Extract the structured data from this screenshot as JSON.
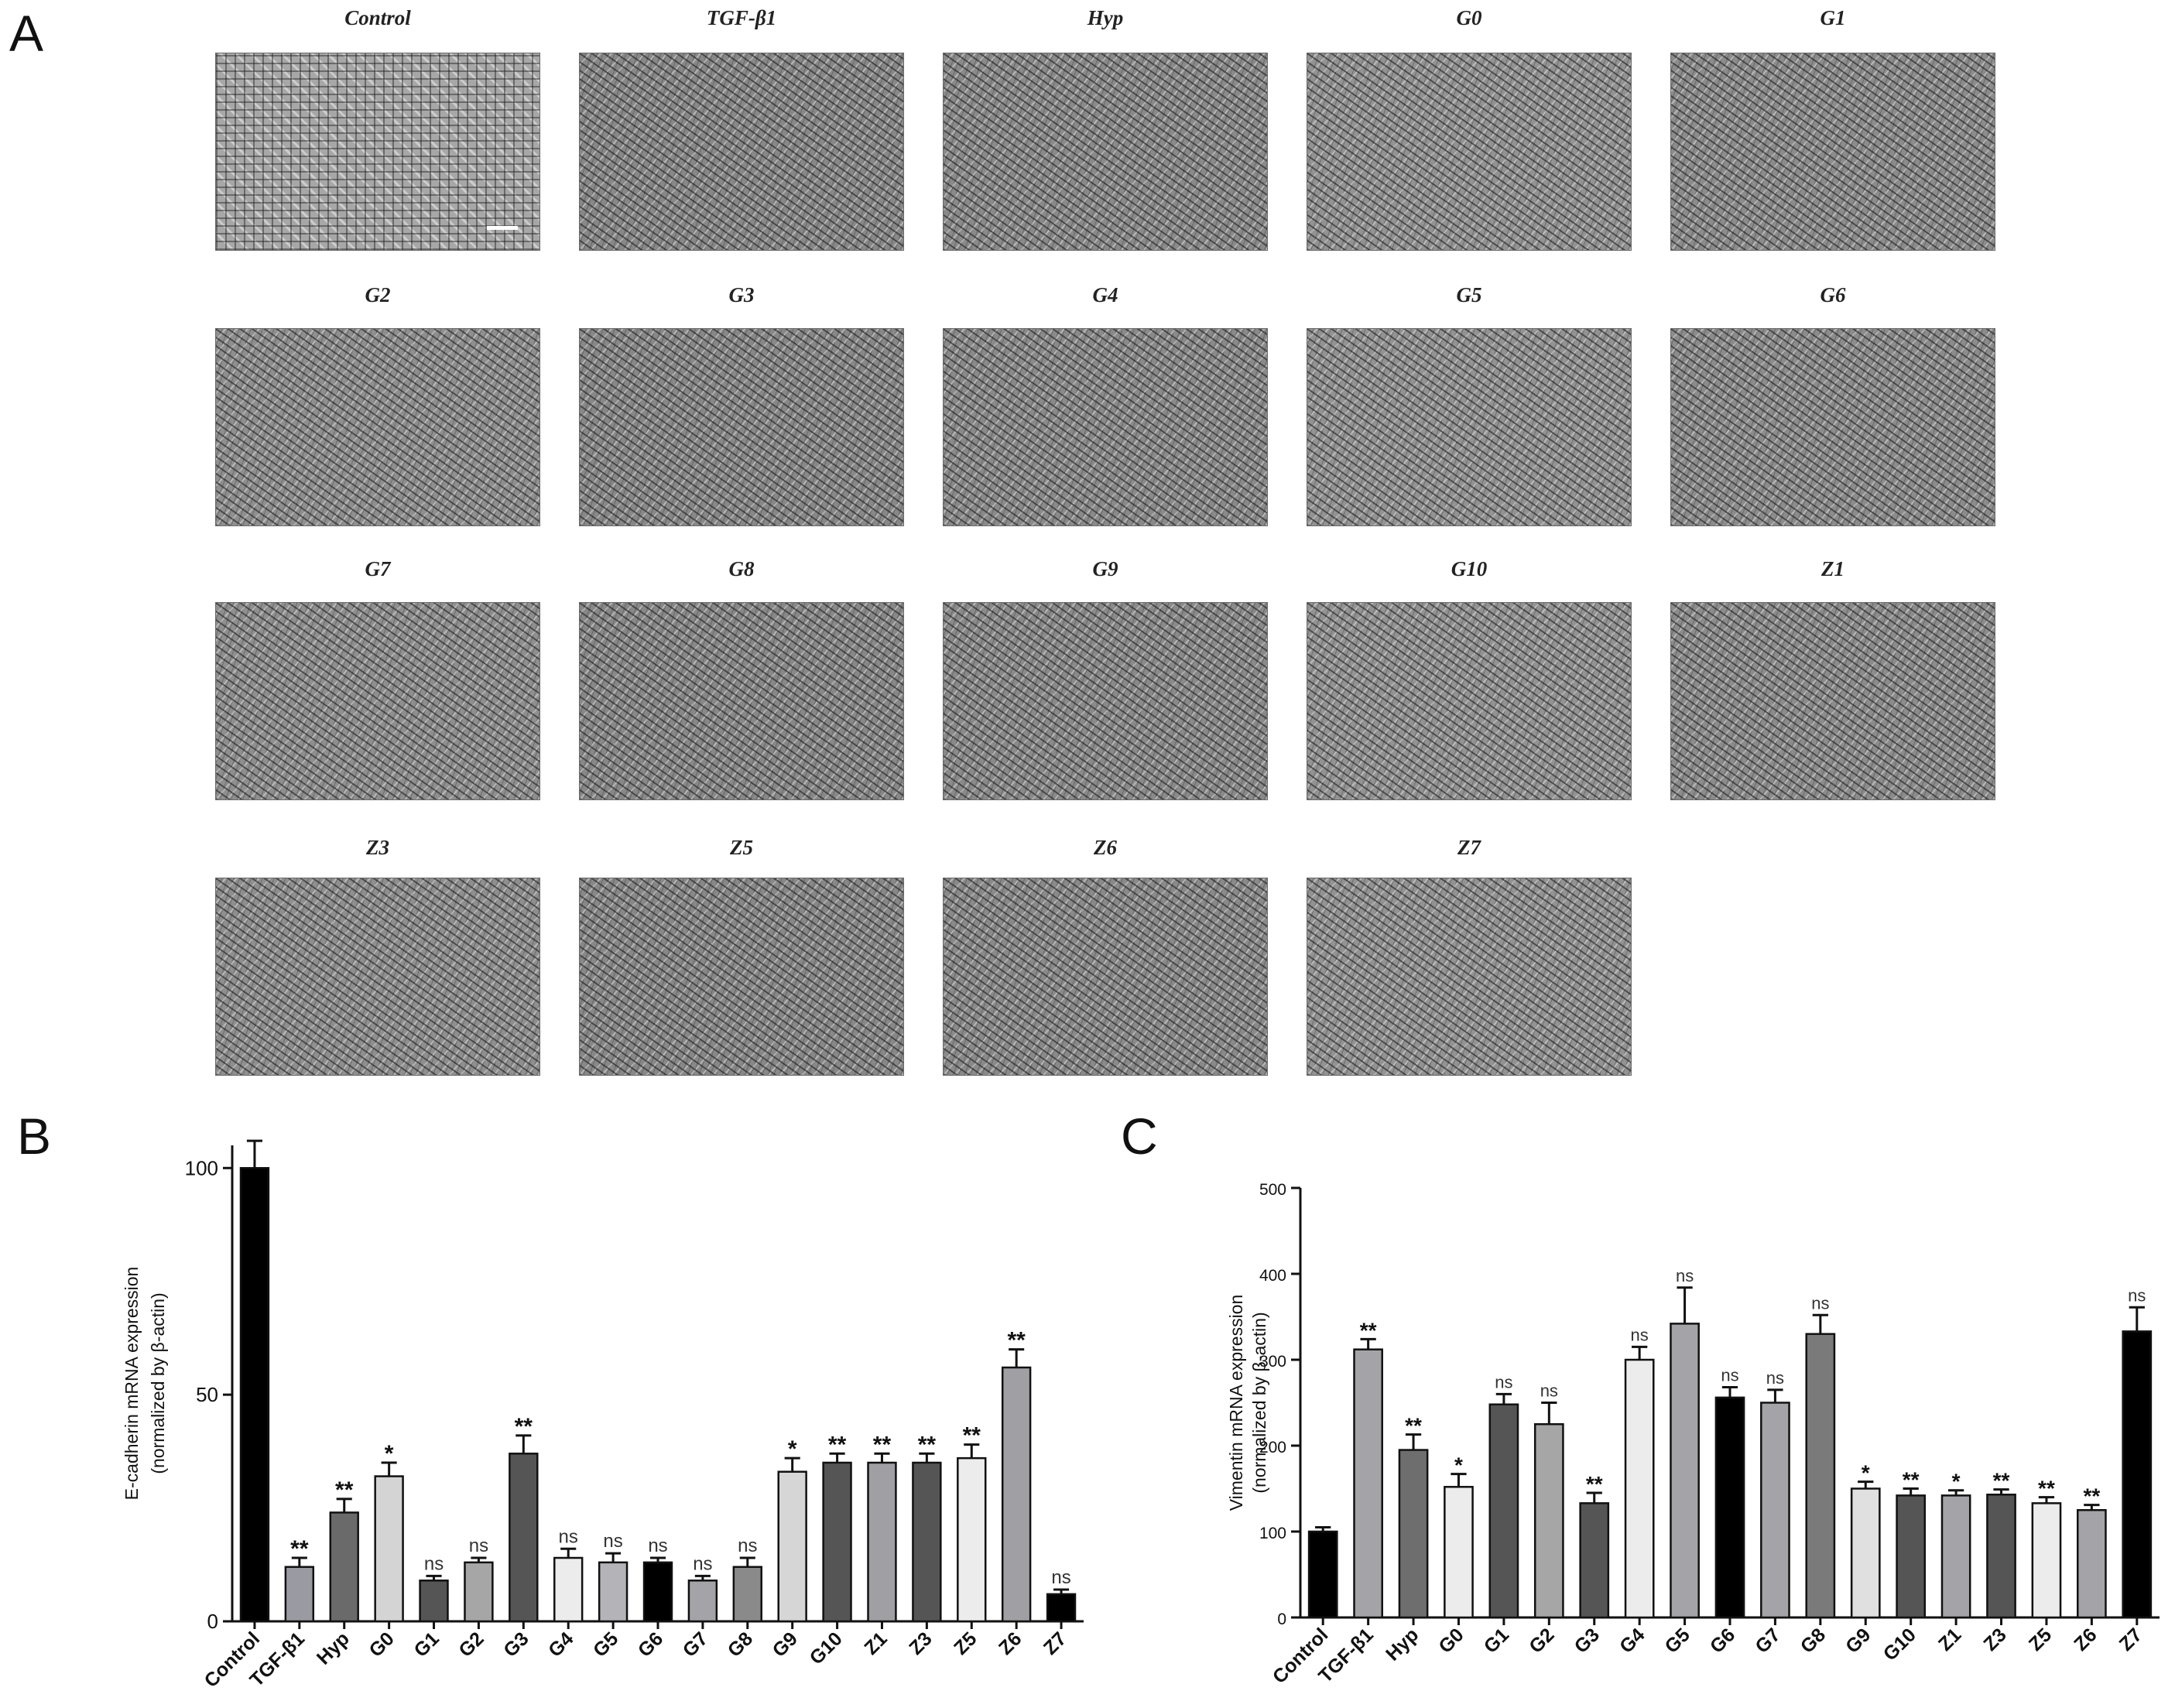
{
  "panel_letters": {
    "a": "A",
    "b": "B",
    "c": "C"
  },
  "micrographs": [
    {
      "label": "Control"
    },
    {
      "label": "TGF-β1"
    },
    {
      "label": "Hyp"
    },
    {
      "label": "G0"
    },
    {
      "label": "G1"
    },
    {
      "label": "G2"
    },
    {
      "label": "G3"
    },
    {
      "label": "G4"
    },
    {
      "label": "G5"
    },
    {
      "label": "G6"
    },
    {
      "label": "G7"
    },
    {
      "label": "G8"
    },
    {
      "label": "G9"
    },
    {
      "label": "G10"
    },
    {
      "label": "Z1"
    },
    {
      "label": "Z3"
    },
    {
      "label": "Z5"
    },
    {
      "label": "Z6"
    },
    {
      "label": "Z7"
    }
  ],
  "chart_data": [
    {
      "type": "bar",
      "panel": "B",
      "ylabel": "E-cadherin mRNA expression (normalized by β-actin)",
      "ylabel_lines": [
        "E-cadherin mRNA expression",
        "(normalized by β-actin)"
      ],
      "ylim": [
        0,
        105
      ],
      "yticks": [
        0,
        50,
        100
      ],
      "categories": [
        "Control",
        "TGF-β1",
        "Hyp",
        "G0",
        "G1",
        "G2",
        "G3",
        "G4",
        "G5",
        "G6",
        "G7",
        "G8",
        "G9",
        "G10",
        "Z1",
        "Z3",
        "Z5",
        "Z6",
        "Z7"
      ],
      "values": [
        100,
        12,
        24,
        32,
        9,
        13,
        37,
        14,
        13,
        13,
        9,
        12,
        33,
        35,
        35,
        35,
        36,
        56,
        6
      ],
      "errors": [
        6,
        2,
        3,
        3,
        1,
        1,
        4,
        2,
        2,
        1,
        1,
        2,
        3,
        2,
        2,
        2,
        3,
        4,
        1
      ],
      "significance": [
        "",
        "**",
        "**",
        "*",
        "ns",
        "ns",
        "**",
        "ns",
        "ns",
        "ns",
        "ns",
        "ns",
        "*",
        "**",
        "**",
        "**",
        "**",
        "**",
        "ns"
      ],
      "bar_colors": [
        "#000000",
        "#9a9aa2",
        "#6a6a6a",
        "#d4d4d4",
        "#555555",
        "#a6a6a6",
        "#555555",
        "#ececec",
        "#b4b4b8",
        "#000000",
        "#a4a4a8",
        "#8a8a8a",
        "#d6d6d6",
        "#555555",
        "#a0a0a4",
        "#555555",
        "#ececec",
        "#a0a0a4",
        "#000000"
      ]
    },
    {
      "type": "bar",
      "panel": "C",
      "ylabel": "Vimentin mRNA expression (normalized by β-actin)",
      "ylabel_lines": [
        "Vimentin mRNA expression",
        "(normalized by β-actin)"
      ],
      "ylim": [
        0,
        500
      ],
      "yticks": [
        0,
        100,
        200,
        300,
        400,
        500
      ],
      "categories": [
        "Control",
        "TGF-β1",
        "Hyp",
        "G0",
        "G1",
        "G2",
        "G3",
        "G4",
        "G5",
        "G6",
        "G7",
        "G8",
        "G9",
        "G10",
        "Z1",
        "Z3",
        "Z5",
        "Z6",
        "Z7"
      ],
      "values": [
        100,
        312,
        195,
        152,
        248,
        225,
        133,
        300,
        342,
        256,
        250,
        330,
        150,
        142,
        142,
        143,
        133,
        125,
        333
      ],
      "errors": [
        5,
        12,
        18,
        15,
        12,
        25,
        12,
        15,
        42,
        12,
        15,
        22,
        8,
        8,
        6,
        6,
        7,
        6,
        28
      ],
      "significance": [
        "",
        "**",
        "**",
        "*",
        "ns",
        "ns",
        "**",
        "ns",
        "ns",
        "ns",
        "ns",
        "ns",
        "*",
        "**",
        "*",
        "**",
        "**",
        "**",
        "ns"
      ],
      "bar_colors": [
        "#000000",
        "#a4a4a8",
        "#6e6e6e",
        "#ececec",
        "#555555",
        "#a6a6a6",
        "#555555",
        "#ececec",
        "#a4a4a8",
        "#000000",
        "#a4a4a8",
        "#7a7a7a",
        "#e0e0e0",
        "#555555",
        "#a4a4a8",
        "#555555",
        "#ececec",
        "#a4a4a8",
        "#000000"
      ]
    }
  ]
}
